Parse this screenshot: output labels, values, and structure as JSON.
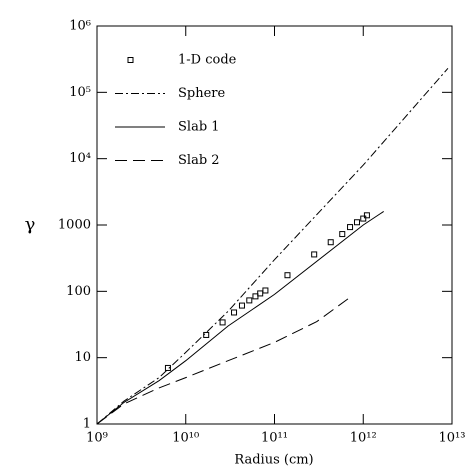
{
  "chart_data": {
    "type": "line",
    "x_label": "Radius (cm)",
    "y_label": "γ",
    "xscale": "log",
    "yscale": "log",
    "xlim": [
      1000000000,
      10000000000000
    ],
    "ylim": [
      1,
      1000000
    ],
    "xticks": [
      {
        "value": 1000000000,
        "label": "10⁹"
      },
      {
        "value": 10000000000,
        "label": "10¹⁰"
      },
      {
        "value": 100000000000,
        "label": "10¹¹"
      },
      {
        "value": 1000000000000,
        "label": "10¹²"
      },
      {
        "value": 10000000000000,
        "label": "10¹³"
      }
    ],
    "yticks": [
      1,
      10,
      100,
      1000,
      {
        "value": 10000,
        "label": "10⁴"
      },
      {
        "value": 100000,
        "label": "10⁵"
      },
      {
        "value": 1000000,
        "label": "10⁶"
      }
    ],
    "legend": "upper left",
    "series": [
      {
        "name": "1-D code",
        "color": "#000000",
        "marker": "square",
        "x": [
          6300000000,
          17000000000,
          26000000000,
          35000000000,
          43000000000,
          52000000000,
          61000000000,
          69000000000,
          79000000000,
          140000000000,
          280000000000,
          430000000000,
          580000000000,
          710000000000,
          850000000000,
          1000000000000,
          1100000000000
        ],
        "values": [
          7,
          22,
          34,
          48,
          61,
          73,
          84,
          93,
          103,
          175,
          360,
          550,
          730,
          930,
          1100,
          1250,
          1400
        ]
      },
      {
        "name": "Sphere",
        "color": "#000000",
        "dash": "8 3 2 3",
        "x": [
          1000000000,
          2000000000,
          5000000000,
          10000000000,
          30000000000,
          100000000000,
          1000000000000,
          9000000000000
        ],
        "values": [
          1,
          2.2,
          5,
          12,
          50,
          300,
          8000,
          230000
        ]
      },
      {
        "name": "Slab 1",
        "color": "#000000",
        "x": [
          1000000000,
          2000000000,
          5000000000,
          10000000000,
          30000000000,
          100000000000,
          1000000000000,
          1700000000000
        ],
        "values": [
          1,
          2.1,
          4.5,
          9,
          30,
          90,
          1000,
          1600
        ]
      },
      {
        "name": "Slab 2",
        "color": "#000000",
        "dash": "12 6",
        "x": [
          1000000000,
          2000000000,
          5000000000,
          10000000000,
          30000000000,
          100000000000,
          300000000000,
          700000000000
        ],
        "values": [
          1,
          2,
          3.5,
          5,
          9,
          17,
          35,
          80
        ]
      }
    ]
  }
}
